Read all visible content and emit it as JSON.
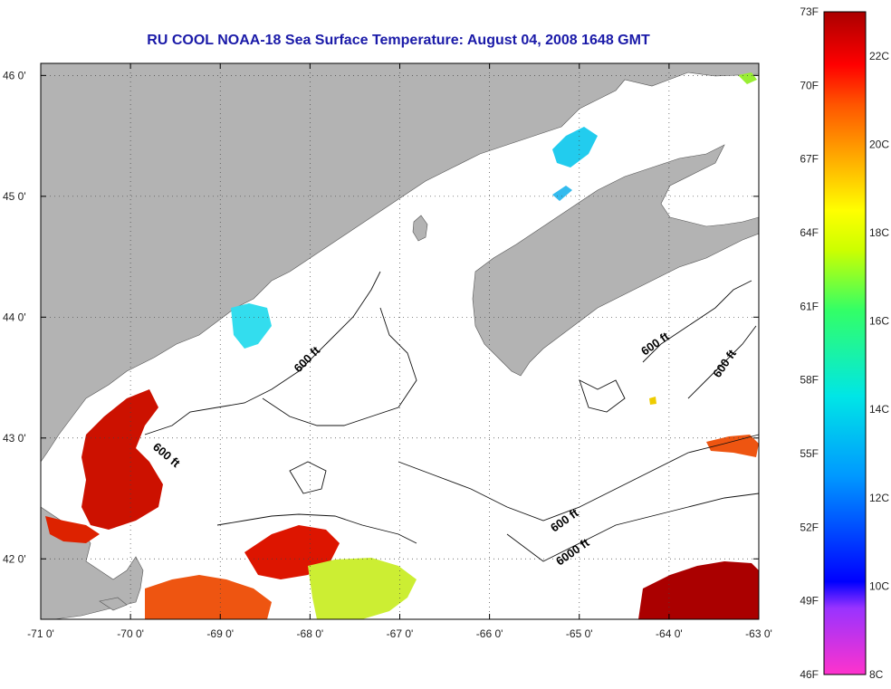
{
  "title": "RU COOL  NOAA-18  Sea Surface Temperature:  August 04, 2008 1648 GMT",
  "map": {
    "lon_ticks": [
      "-71 0'",
      "-70 0'",
      "-69 0'",
      "-68 0'",
      "-67 0'",
      "-66 0'",
      "-65 0'",
      "-64 0'",
      "-63 0'"
    ],
    "lat_ticks": [
      "46 0'",
      "45 0'",
      "44 0'",
      "43 0'",
      "42 0'"
    ],
    "lon_range": [
      -71,
      -63
    ],
    "lat_range": [
      41.5,
      46.1
    ],
    "contour_labels": [
      {
        "text": "600 ft"
      },
      {
        "text": "600 ft"
      },
      {
        "text": "600 ft"
      },
      {
        "text": "600 ft"
      },
      {
        "text": "600 ft"
      },
      {
        "text": "6000 ft"
      }
    ],
    "land_color": "#b3b3b3",
    "water_color": "#ffffff"
  },
  "colorbar": {
    "f_labels": [
      "73F",
      "70F",
      "67F",
      "64F",
      "61F",
      "58F",
      "55F",
      "52F",
      "49F",
      "46F"
    ],
    "c_labels": [
      "22C",
      "20C",
      "18C",
      "16C",
      "14C",
      "12C",
      "10C",
      "8C"
    ],
    "range_c": [
      8,
      23
    ],
    "colors": [
      "#ff33cc",
      "#9933ff",
      "#0000ff",
      "#0099ff",
      "#00e6e6",
      "#33ff66",
      "#ccff00",
      "#ffff00",
      "#ffaa00",
      "#ff5500",
      "#ff0000",
      "#aa0000"
    ]
  }
}
